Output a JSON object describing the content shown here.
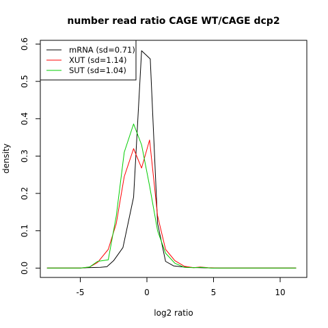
{
  "chart_data": {
    "type": "line",
    "title": "number read ratio CAGE WT/CAGE dcp2",
    "xlabel": "log2 ratio",
    "ylabel": "density",
    "xlim": [
      -8.0,
      12.0
    ],
    "ylim": [
      -0.025,
      0.61
    ],
    "xticks": [
      -5,
      0,
      5,
      10
    ],
    "yticks": [
      0.0,
      0.1,
      0.2,
      0.3,
      0.4,
      0.5,
      0.6
    ],
    "ytick_labels": [
      "0.0",
      "0.1",
      "0.2",
      "0.3",
      "0.4",
      "0.5",
      "0.6"
    ],
    "grid": false,
    "legend_position": "top-left",
    "series": [
      {
        "name": "mRNA (sd=0.71)",
        "color": "#000000",
        "points": [
          [
            -7.5,
            0.0
          ],
          [
            -5.0,
            0.0
          ],
          [
            -4.5,
            0.001
          ],
          [
            -3.5,
            0.002
          ],
          [
            -3.0,
            0.004
          ],
          [
            -2.5,
            0.02
          ],
          [
            -1.8,
            0.055
          ],
          [
            -1.0,
            0.19
          ],
          [
            -0.4,
            0.582
          ],
          [
            0.25,
            0.56
          ],
          [
            0.8,
            0.12
          ],
          [
            1.4,
            0.018
          ],
          [
            2.0,
            0.006
          ],
          [
            3.0,
            0.002
          ],
          [
            4.0,
            0.001
          ],
          [
            5.0,
            0.0
          ],
          [
            11.2,
            0.0
          ]
        ]
      },
      {
        "name": "XUT (sd=1.14)",
        "color": "#ff0000",
        "points": [
          [
            -7.5,
            0.0
          ],
          [
            -5.0,
            0.0
          ],
          [
            -4.3,
            0.003
          ],
          [
            -3.7,
            0.015
          ],
          [
            -2.9,
            0.05
          ],
          [
            -2.3,
            0.12
          ],
          [
            -1.7,
            0.245
          ],
          [
            -1.0,
            0.32
          ],
          [
            -0.4,
            0.268
          ],
          [
            0.2,
            0.343
          ],
          [
            0.8,
            0.14
          ],
          [
            1.4,
            0.05
          ],
          [
            2.1,
            0.02
          ],
          [
            2.8,
            0.005
          ],
          [
            3.5,
            0.001
          ],
          [
            4.0,
            0.003
          ],
          [
            4.6,
            0.001
          ],
          [
            5.5,
            0.0
          ],
          [
            11.2,
            0.0
          ]
        ]
      },
      {
        "name": "SUT (sd=1.04)",
        "color": "#00cc00",
        "points": [
          [
            -7.5,
            0.0
          ],
          [
            -5.0,
            0.0
          ],
          [
            -4.3,
            0.003
          ],
          [
            -3.7,
            0.018
          ],
          [
            -2.9,
            0.022
          ],
          [
            -2.3,
            0.14
          ],
          [
            -1.7,
            0.31
          ],
          [
            -1.0,
            0.386
          ],
          [
            -0.4,
            0.33
          ],
          [
            0.2,
            0.22
          ],
          [
            0.8,
            0.1
          ],
          [
            1.4,
            0.04
          ],
          [
            2.1,
            0.013
          ],
          [
            2.8,
            0.002
          ],
          [
            3.5,
            0.001
          ],
          [
            4.1,
            0.002
          ],
          [
            4.8,
            0.0
          ],
          [
            11.2,
            0.0
          ]
        ]
      }
    ]
  }
}
